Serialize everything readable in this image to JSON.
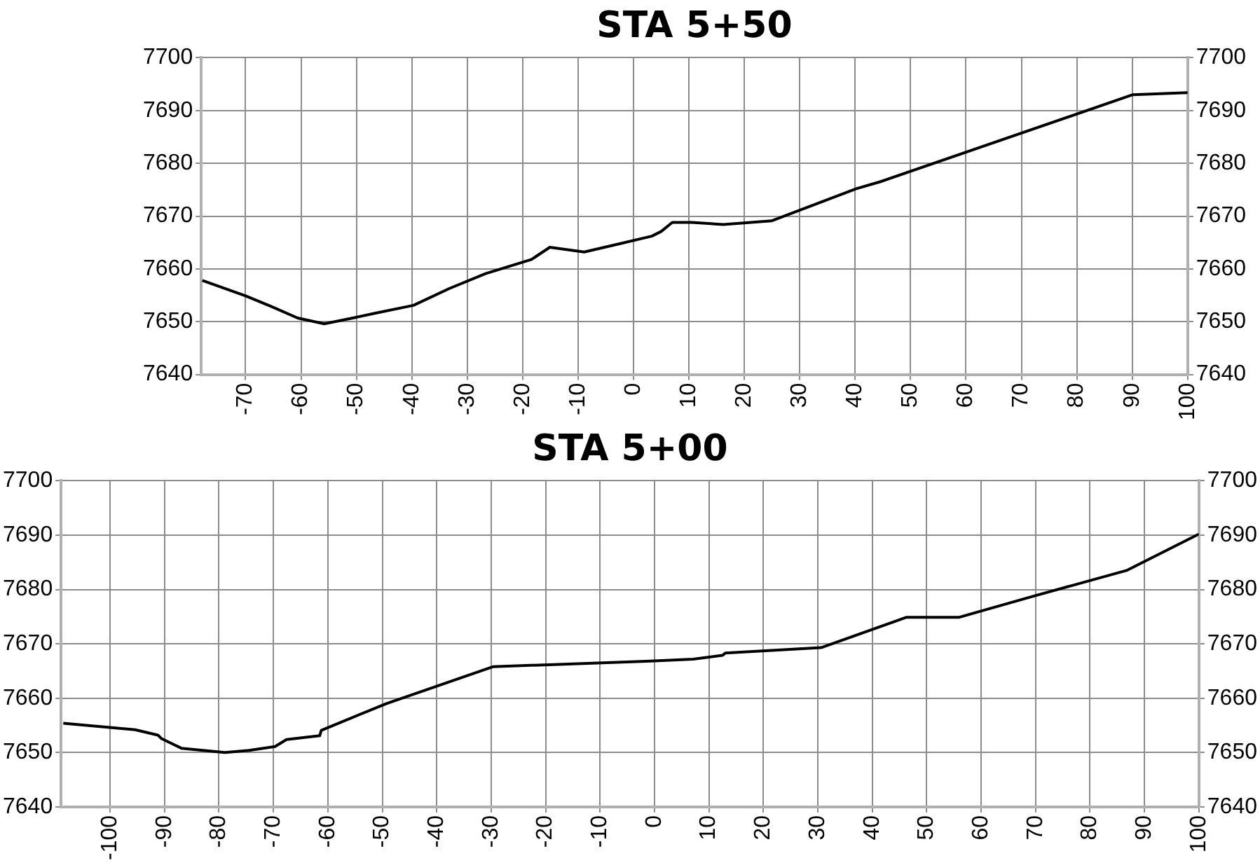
{
  "chart_data": [
    {
      "type": "line",
      "title": "STA 5+50",
      "marker": "none",
      "line_style": "solid",
      "grid": true,
      "xlim": [
        -78,
        100
      ],
      "xticks": [
        -70,
        -60,
        -50,
        -40,
        -30,
        -20,
        -10,
        0,
        10,
        20,
        30,
        40,
        50,
        60,
        70,
        80,
        90,
        100
      ],
      "ylim": [
        7640,
        7700
      ],
      "yticks": [
        7640,
        7650,
        7660,
        7670,
        7680,
        7690,
        7700
      ],
      "y2lim": [
        7640,
        7700
      ],
      "y2ticks": [
        7640,
        7650,
        7660,
        7670,
        7680,
        7690,
        7700
      ],
      "series": [
        {
          "color": "#000000",
          "x": [
            -77.8,
            -70,
            -65.4,
            -60.6,
            -55.8,
            -50.2,
            -46.7,
            -39.7,
            -33.2,
            -26.7,
            -18.4,
            -15.1,
            -8.9,
            -3.2,
            3.3,
            5,
            7,
            10.5,
            16.2,
            24.9,
            40.2,
            44.5,
            90.1,
            100
          ],
          "values": [
            7657.8,
            7654.9,
            7652.9,
            7650.7,
            7649.6,
            7650.8,
            7651.6,
            7653.1,
            7656.3,
            7659.1,
            7661.8,
            7664.1,
            7663.2,
            7664.6,
            7666.2,
            7667.1,
            7668.8,
            7668.8,
            7668.4,
            7669.1,
            7675.2,
            7676.5,
            7693.0,
            7693.4
          ]
        }
      ]
    },
    {
      "type": "line",
      "title": "STA 5+00",
      "marker": "none",
      "line_style": "solid",
      "grid": true,
      "xlim": [
        -109,
        100
      ],
      "xticks": [
        -100,
        -90,
        -80,
        -70,
        -60,
        -50,
        -40,
        -30,
        -20,
        -10,
        0,
        10,
        20,
        30,
        40,
        50,
        60,
        70,
        80,
        90,
        100
      ],
      "ylim": [
        7640,
        7700
      ],
      "yticks": [
        7640,
        7650,
        7660,
        7670,
        7680,
        7690,
        7700
      ],
      "y2lim": [
        7640,
        7700
      ],
      "y2ticks": [
        7640,
        7650,
        7660,
        7670,
        7680,
        7690,
        7700
      ],
      "series": [
        {
          "color": "#000000",
          "x": [
            -108.6,
            -95.4,
            -91.2,
            -90.6,
            -86.9,
            -78.9,
            -74.5,
            -69.7,
            -67.6,
            -61.5,
            -61.2,
            -49.3,
            -29.7,
            -1.5,
            7.1,
            12.5,
            13,
            30.6,
            46.3,
            56,
            69.7,
            86.7,
            100
          ],
          "values": [
            7655.4,
            7654.2,
            7653.2,
            7652.6,
            7650.8,
            7650.0,
            7650.4,
            7651.1,
            7652.4,
            7653.1,
            7654.1,
            7659.0,
            7665.8,
            7666.8,
            7667.2,
            7667.9,
            7668.3,
            7669.3,
            7674.9,
            7674.9,
            7678.8,
            7683.5,
            7690.2
          ]
        }
      ]
    }
  ]
}
